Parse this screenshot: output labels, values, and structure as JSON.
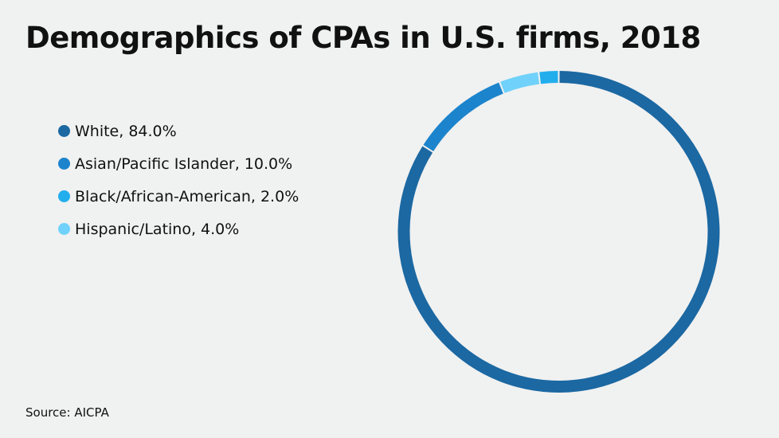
{
  "chart_data": {
    "type": "pie",
    "variant": "donut",
    "title": "Demographics of CPAs in U.S. firms, 2018",
    "legend_position": "left",
    "series": [
      {
        "name": "White",
        "value": 84.0,
        "label": "White, 84.0%",
        "color": "#1b68a2"
      },
      {
        "name": "Asian/Pacific Islander",
        "value": 10.0,
        "label": "Asian/Pacific Islander, 10.0%",
        "color": "#1c84cc"
      },
      {
        "name": "Black/African-American",
        "value": 2.0,
        "label": "Black/African-American, 2.0%",
        "color": "#22aeed"
      },
      {
        "name": "Hispanic/Latino",
        "value": 4.0,
        "label": "Hispanic/Latino, 4.0%",
        "color": "#70d2fa"
      }
    ],
    "draw_order_clockwise_from_top": [
      "White",
      "Asian/Pacific Islander",
      "Hispanic/Latino",
      "Black/African-American"
    ],
    "source": "Source: AICPA"
  }
}
